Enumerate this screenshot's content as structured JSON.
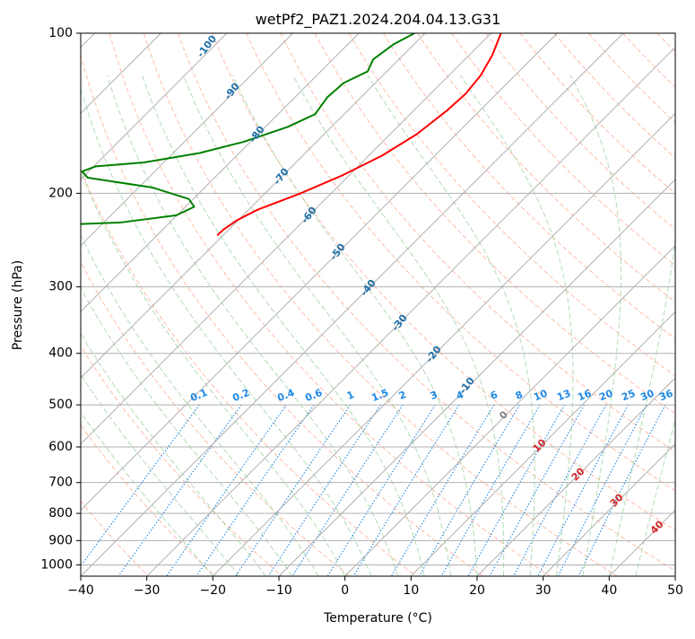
{
  "chart_data": {
    "type": "line",
    "title": "wetPf2_PAZ1.2024.204.04.13.G31",
    "xlabel": "Temperature (°C)",
    "ylabel": "Pressure (hPa)",
    "xlim": [
      -40,
      50
    ],
    "ylim": [
      1050,
      100
    ],
    "y_scale": "log",
    "skew": "isotherms slanted to the right",
    "grid": true,
    "x_ticks": [
      -40,
      -30,
      -20,
      -10,
      0,
      10,
      20,
      30,
      40,
      50
    ],
    "x_tick_labels": [
      "−40",
      "−30",
      "−20",
      "−10",
      "0",
      "10",
      "20",
      "30",
      "40",
      "50"
    ],
    "y_ticks": [
      100,
      200,
      300,
      400,
      500,
      600,
      700,
      800,
      900,
      1000
    ],
    "y_tick_labels": [
      "100",
      "200",
      "300",
      "400",
      "500",
      "600",
      "700",
      "800",
      "900",
      "1000"
    ],
    "series": [
      {
        "color": "#ff0000",
        "role": "temperature",
        "points": [
          {
            "p": 240,
            "t": -70.9
          },
          {
            "p": 234,
            "t": -70.8
          },
          {
            "p": 225,
            "t": -70.2
          },
          {
            "p": 215,
            "t": -68.7
          },
          {
            "p": 200,
            "t": -64.6
          },
          {
            "p": 185,
            "t": -61.0
          },
          {
            "p": 170,
            "t": -58.0
          },
          {
            "p": 155,
            "t": -56.0
          },
          {
            "p": 140,
            "t": -55.0
          },
          {
            "p": 130,
            "t": -54.7
          },
          {
            "p": 120,
            "t": -55.2
          },
          {
            "p": 110,
            "t": -56.5
          },
          {
            "p": 100,
            "t": -58.5
          }
        ]
      },
      {
        "color": "#008000",
        "role": "dewpoint",
        "points": [
          {
            "p": 240,
            "t": -101.8
          },
          {
            "p": 237,
            "t": -105.5
          },
          {
            "p": 233,
            "t": -105.2
          },
          {
            "p": 231,
            "t": -103.0
          },
          {
            "p": 227,
            "t": -87.5
          },
          {
            "p": 220,
            "t": -80.1
          },
          {
            "p": 212,
            "t": -78.7
          },
          {
            "p": 205,
            "t": -80.7
          },
          {
            "p": 195,
            "t": -88.0
          },
          {
            "p": 187,
            "t": -99.2
          },
          {
            "p": 182,
            "t": -101.0
          },
          {
            "p": 178,
            "t": -99.7
          },
          {
            "p": 175,
            "t": -93.0
          },
          {
            "p": 168,
            "t": -86.0
          },
          {
            "p": 160,
            "t": -81.0
          },
          {
            "p": 150,
            "t": -76.6
          },
          {
            "p": 142,
            "t": -74.4
          },
          {
            "p": 132,
            "t": -75.1
          },
          {
            "p": 124,
            "t": -74.8
          },
          {
            "p": 118,
            "t": -72.9
          },
          {
            "p": 112,
            "t": -73.9
          },
          {
            "p": 105,
            "t": -73.1
          },
          {
            "p": 100,
            "t": -71.6
          }
        ]
      }
    ],
    "dry_adiabat_labels": [
      "-100",
      "-90",
      "-80",
      "-70",
      "-60",
      "-50",
      "-40",
      "-30",
      "-20",
      "-10"
    ],
    "moist_adiabat_labels": [
      "0",
      "10",
      "20",
      "30",
      "40"
    ],
    "mixing_ratio_labels": [
      "0.1",
      "0.2",
      "0.4",
      "0.6",
      "1",
      "1.5",
      "2",
      "3",
      "4",
      "6",
      "8",
      "10",
      "13",
      "16",
      "20",
      "25",
      "30",
      "36"
    ],
    "mixing_ratio_values": [
      0.1,
      0.2,
      0.4,
      0.6,
      1,
      1.5,
      2,
      3,
      4,
      6,
      8,
      10,
      13,
      16,
      20,
      25,
      30,
      36
    ],
    "colors": {
      "temperature": "#ff0000",
      "dewpoint": "#008000",
      "dry_adiabat": "#ffa58a",
      "moist_adiabat": "#9fd39f",
      "mixing_ratio": "#1e88e5",
      "dry_adiabat_label": "#1f6fa8",
      "moist_adiabat_label": "#d62728",
      "mixing_ratio_label": "#1e88e5",
      "grid": "#b0b0b0",
      "freezing_label": "#808080"
    }
  }
}
